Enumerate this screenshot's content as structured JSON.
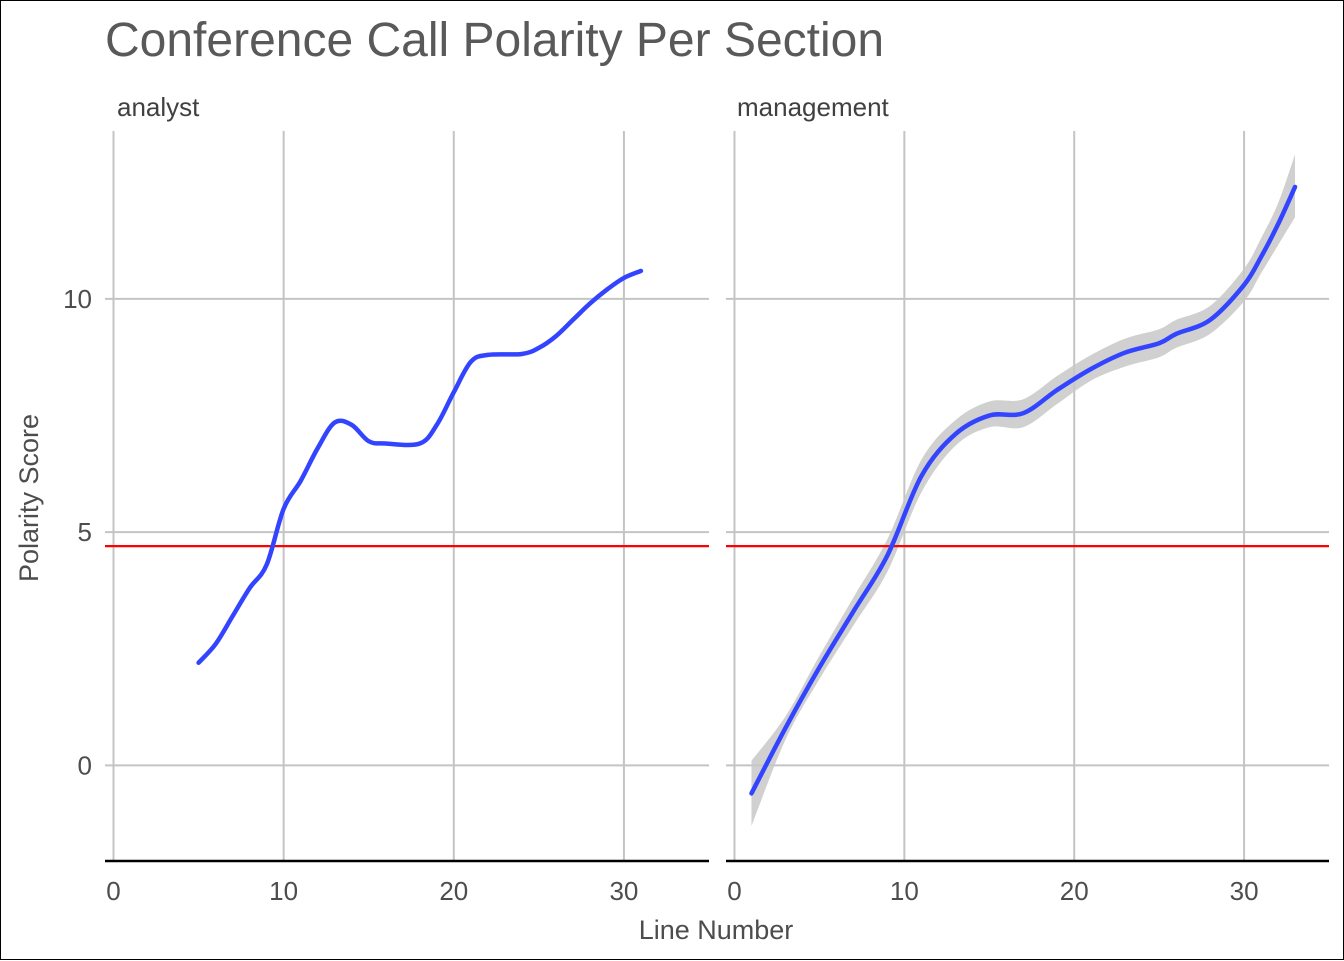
{
  "chart_data": {
    "type": "line",
    "title": "Conference Call Polarity Per Section",
    "xlabel": "Line Number",
    "ylabel": "Polarity Score",
    "xlim": [
      -0.5,
      35
    ],
    "ylim": [
      -2.05,
      13.6
    ],
    "x_ticks": [
      0,
      10,
      20,
      30
    ],
    "y_ticks": [
      0,
      5,
      10
    ],
    "grid": true,
    "reference_line": {
      "y": 4.7,
      "color": "#ff0000"
    },
    "line_color": "#3344ff",
    "band_color": "#c8c8c8",
    "facets": [
      {
        "label": "analyst",
        "series": [
          {
            "x": [
              5,
              6,
              7,
              8,
              9,
              10,
              11,
              12,
              13,
              14,
              15,
              16,
              18,
              19,
              20,
              21,
              22,
              24,
              25,
              26,
              27,
              28,
              29,
              30,
              31
            ],
            "y": [
              2.2,
              2.6,
              3.2,
              3.8,
              4.3,
              5.5,
              6.1,
              6.8,
              7.35,
              7.3,
              6.95,
              6.9,
              6.9,
              7.3,
              8.0,
              8.65,
              8.8,
              8.82,
              8.95,
              9.2,
              9.55,
              9.9,
              10.2,
              10.45,
              10.6
            ],
            "lower": [],
            "upper": []
          }
        ]
      },
      {
        "label": "management",
        "series": [
          {
            "x": [
              1,
              3,
              5,
              7,
              9,
              11,
              13,
              15,
              17,
              19,
              21,
              23,
              25,
              26,
              28,
              30,
              31,
              32,
              33
            ],
            "y": [
              -0.6,
              0.8,
              2.1,
              3.3,
              4.5,
              6.2,
              7.1,
              7.5,
              7.55,
              8.05,
              8.5,
              8.85,
              9.05,
              9.25,
              9.55,
              10.3,
              10.9,
              11.6,
              12.4
            ],
            "lower": [
              -1.3,
              0.55,
              1.85,
              3.0,
              4.15,
              5.85,
              6.85,
              7.25,
              7.25,
              7.75,
              8.25,
              8.55,
              8.75,
              8.95,
              9.25,
              9.95,
              10.55,
              11.15,
              11.75
            ],
            "upper": [
              0.1,
              1.05,
              2.35,
              3.6,
              4.85,
              6.55,
              7.4,
              7.8,
              7.85,
              8.35,
              8.8,
              9.15,
              9.35,
              9.55,
              9.85,
              10.65,
              11.3,
              12.05,
              13.1
            ]
          }
        ]
      }
    ]
  }
}
